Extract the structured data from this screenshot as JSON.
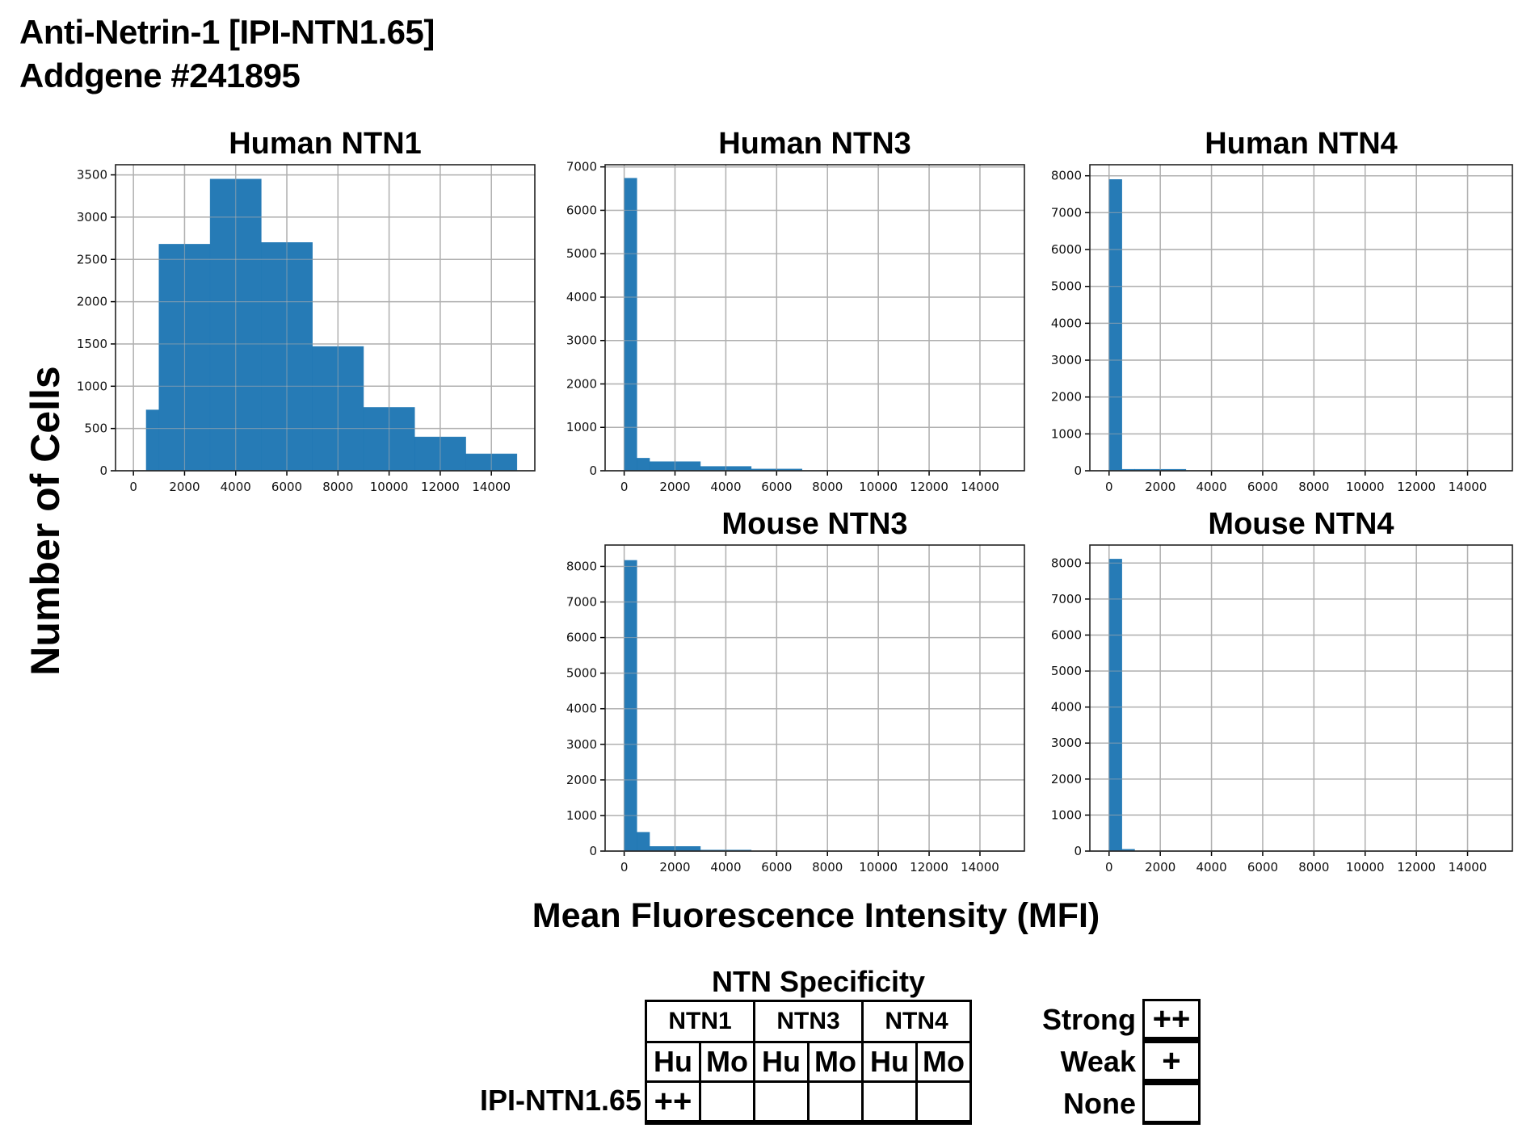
{
  "header": {
    "title": "Anti-Netrin-1 [IPI-NTN1.65]",
    "subtitle": "Addgene #241895"
  },
  "axes_labels": {
    "y": "Number of Cells",
    "x": "Mean Fluorescence Intensity (MFI)"
  },
  "colors": {
    "bar": "#1f77b4",
    "grid": "#b0b0b0"
  },
  "chart_data": [
    {
      "type": "bar",
      "title": "Human NTN1",
      "xlabel": "Mean Fluorescence Intensity (MFI)",
      "ylabel": "Number of Cells",
      "grid": true,
      "bin_edges": [
        500,
        1000,
        3000,
        5000,
        7000,
        9000,
        11000,
        13000,
        15000
      ],
      "values": [
        720,
        2680,
        3450,
        2700,
        1470,
        750,
        400,
        200
      ],
      "xlim": [
        -700,
        15700
      ],
      "ylim": [
        0,
        3620
      ],
      "xticks": [
        "0",
        "2000",
        "4000",
        "6000",
        "8000",
        "10000",
        "12000",
        "14000"
      ],
      "yticks": [
        "0",
        "500",
        "1000",
        "1500",
        "2000",
        "2500",
        "3000",
        "3500"
      ]
    },
    {
      "type": "bar",
      "title": "Human NTN3",
      "xlabel": "Mean Fluorescence Intensity (MFI)",
      "ylabel": "Number of Cells",
      "grid": true,
      "bin_edges": [
        0,
        500,
        1000,
        3000,
        5000,
        7000
      ],
      "values": [
        6740,
        290,
        210,
        100,
        40
      ],
      "xlim": [
        -750,
        15750
      ],
      "ylim": [
        0,
        7050
      ],
      "xticks": [
        "0",
        "2000",
        "4000",
        "6000",
        "8000",
        "10000",
        "12000",
        "14000"
      ],
      "yticks": [
        "0",
        "1000",
        "2000",
        "3000",
        "4000",
        "5000",
        "6000",
        "7000"
      ]
    },
    {
      "type": "bar",
      "title": "Human NTN4",
      "xlabel": "Mean Fluorescence Intensity (MFI)",
      "ylabel": "Number of Cells",
      "grid": true,
      "bin_edges": [
        0,
        500,
        1000,
        3000
      ],
      "values": [
        7900,
        40,
        40
      ],
      "xlim": [
        -750,
        15750
      ],
      "ylim": [
        0,
        8300
      ],
      "xticks": [
        "0",
        "2000",
        "4000",
        "6000",
        "8000",
        "10000",
        "12000",
        "14000"
      ],
      "yticks": [
        "0",
        "1000",
        "2000",
        "3000",
        "4000",
        "5000",
        "6000",
        "7000",
        "8000"
      ]
    },
    {
      "type": "bar",
      "title": "Mouse NTN3",
      "xlabel": "Mean Fluorescence Intensity (MFI)",
      "ylabel": "Number of Cells",
      "grid": true,
      "bin_edges": [
        0,
        500,
        1000,
        3000,
        5000
      ],
      "values": [
        8170,
        530,
        130,
        30
      ],
      "xlim": [
        -750,
        15750
      ],
      "ylim": [
        0,
        8600
      ],
      "xticks": [
        "0",
        "2000",
        "4000",
        "6000",
        "8000",
        "10000",
        "12000",
        "14000"
      ],
      "yticks": [
        "0",
        "1000",
        "2000",
        "3000",
        "4000",
        "5000",
        "6000",
        "7000",
        "8000"
      ]
    },
    {
      "type": "bar",
      "title": "Mouse NTN4",
      "xlabel": "Mean Fluorescence Intensity (MFI)",
      "ylabel": "Number of Cells",
      "grid": true,
      "bin_edges": [
        0,
        500,
        1000
      ],
      "values": [
        8110,
        50
      ],
      "xlim": [
        -750,
        15750
      ],
      "ylim": [
        0,
        8500
      ],
      "xticks": [
        "0",
        "2000",
        "4000",
        "6000",
        "8000",
        "10000",
        "12000",
        "14000"
      ],
      "yticks": [
        "0",
        "1000",
        "2000",
        "3000",
        "4000",
        "5000",
        "6000",
        "7000",
        "8000"
      ]
    }
  ],
  "specificity_table": {
    "title": "NTN Specificity",
    "groups": [
      "NTN1",
      "NTN3",
      "NTN4"
    ],
    "species": [
      "Hu",
      "Mo",
      "Hu",
      "Mo",
      "Hu",
      "Mo"
    ],
    "row_label": "IPI-NTN1.65",
    "values": [
      "++",
      "",
      "",
      "",
      "",
      ""
    ]
  },
  "legend": [
    {
      "label": "Strong",
      "symbol": "++"
    },
    {
      "label": "Weak",
      "symbol": "+"
    },
    {
      "label": "None",
      "symbol": ""
    }
  ]
}
